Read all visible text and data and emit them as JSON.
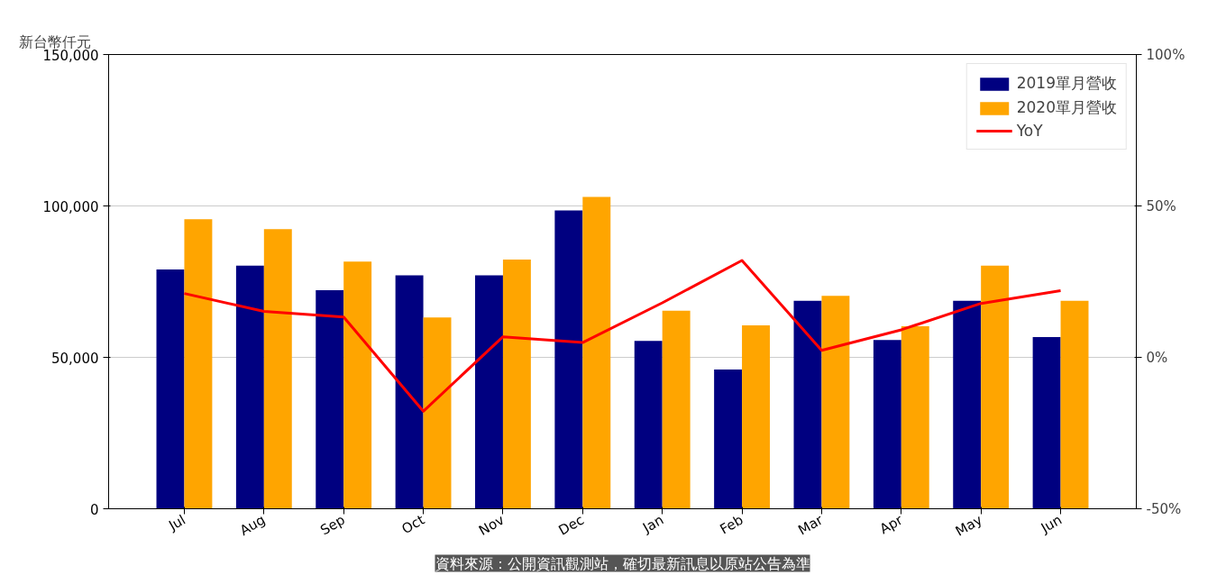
{
  "chart_data": {
    "type": "bar",
    "ylabel": "新台幣仟元",
    "categories": [
      "Jul",
      "Aug",
      "Sep",
      "Oct",
      "Nov",
      "Dec",
      "Jan",
      "Feb",
      "Mar",
      "Apr",
      "May",
      "Jun"
    ],
    "series": [
      {
        "name": "2019單月營收",
        "color": "#000080",
        "values": [
          79000,
          80300,
          72200,
          77100,
          77100,
          98500,
          55400,
          46000,
          68700,
          55700,
          68700,
          56700
        ]
      },
      {
        "name": "2020單月營收",
        "color": "#ffa500",
        "values": [
          95600,
          92300,
          81600,
          63200,
          82300,
          103000,
          65400,
          60600,
          70300,
          60300,
          80300,
          68700
        ]
      },
      {
        "name": "YoY",
        "type": "line",
        "axis": "y2",
        "color": "#ff0000",
        "values": [
          21.1,
          15.2,
          13.3,
          -17.8,
          6.8,
          4.9,
          18.0,
          32.0,
          2.3,
          9.1,
          17.8,
          22.0
        ]
      }
    ],
    "ylim": [
      0,
      150000
    ],
    "yticks": [
      {
        "value": 0,
        "label": "0"
      },
      {
        "value": 50000,
        "label": "50,000"
      },
      {
        "value": 100000,
        "label": "100,000"
      },
      {
        "value": 150000,
        "label": "150,000"
      }
    ],
    "y2lim": [
      -50,
      100
    ],
    "y2ticks": [
      {
        "value": -50,
        "label": "-50%"
      },
      {
        "value": 0,
        "label": "0%"
      },
      {
        "value": 50,
        "label": "50%"
      },
      {
        "value": 100,
        "label": "100%"
      }
    ],
    "grid": "y",
    "legend": "top right",
    "line_style": "solid",
    "marker": "none",
    "annotations": [
      "資料來源：公開資訊觀測站，確切最新訊息以原站公告為準"
    ]
  }
}
